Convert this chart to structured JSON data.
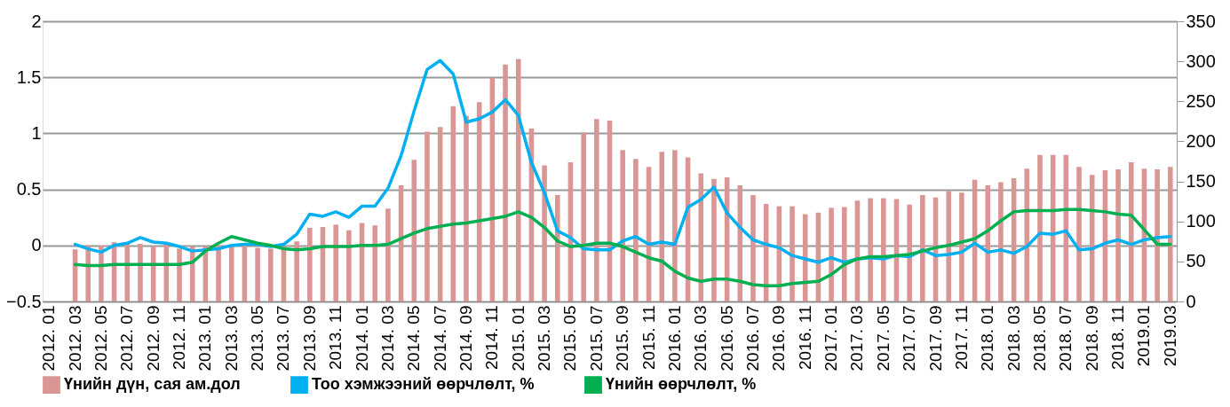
{
  "chart_data": {
    "type": "bar",
    "categories": [
      "2012. 01",
      null,
      "2012. 03",
      null,
      "2012. 05",
      null,
      "2012. 07",
      null,
      "2012. 09",
      null,
      "2012. 11",
      null,
      "2013. 01",
      null,
      "2013. 03",
      null,
      "2013. 05",
      null,
      "2013. 07",
      null,
      "2013. 09",
      null,
      "2013. 11",
      null,
      "2014. 01",
      null,
      "2014. 03",
      null,
      "2014. 05",
      null,
      "2014. 07",
      null,
      "2014. 09",
      null,
      "2014. 11",
      null,
      "2015. 01",
      null,
      "2015. 03",
      null,
      "2015. 05",
      null,
      "2015. 07",
      null,
      "2015. 09",
      null,
      "2015. 11",
      null,
      "2016. 01",
      null,
      "2016. 03",
      null,
      "2016. 05",
      null,
      "2016. 07",
      null,
      "2016. 09",
      null,
      "2016. 11",
      null,
      "2017. 01",
      null,
      "2017. 03",
      null,
      "2017. 05",
      null,
      "2017. 07",
      null,
      "2017. 09",
      null,
      "2017. 11",
      null,
      "2018. 01",
      null,
      "2018. 03",
      null,
      "2018. 05",
      null,
      "2018. 07",
      null,
      "2018. 09",
      null,
      "2018. 11",
      null,
      "2019.01",
      null,
      "2019.03"
    ],
    "series": [
      {
        "name": "Үнийн дүн, сая ам.дол",
        "axis": "y2",
        "color": "#d99694",
        "values": [
          null,
          null,
          65,
          70,
          70,
          74,
          74,
          72,
          69,
          72,
          66,
          69,
          69,
          70,
          69,
          72,
          67,
          66,
          69,
          75,
          92,
          93,
          96,
          89,
          98,
          95,
          116,
          145,
          177,
          212,
          218,
          244,
          232,
          249,
          279,
          296,
          303,
          216,
          170,
          133,
          174,
          211,
          228,
          226,
          189,
          178,
          168,
          187,
          189,
          180,
          160,
          153,
          155,
          145,
          133,
          122,
          119,
          119,
          109,
          111,
          117,
          118,
          126,
          129,
          129,
          128,
          121,
          133,
          130,
          138,
          136,
          152,
          145,
          149,
          154,
          166,
          183,
          183,
          183,
          168,
          158,
          164,
          165,
          174,
          166,
          165,
          168
        ]
      },
      {
        "name": "Тоо хэмжээний өөрчлөлт, %",
        "type": "line",
        "color": "#00b0f0",
        "values": [
          null,
          null,
          0.01,
          -0.03,
          -0.06,
          0.0,
          0.02,
          0.07,
          0.03,
          0.02,
          -0.01,
          -0.05,
          -0.04,
          -0.03,
          0.0,
          0.01,
          0.01,
          -0.01,
          0.01,
          0.1,
          0.28,
          0.26,
          0.3,
          0.25,
          0.35,
          0.35,
          0.51,
          0.8,
          1.2,
          1.57,
          1.65,
          1.53,
          1.1,
          1.13,
          1.19,
          1.3,
          1.16,
          0.74,
          0.47,
          0.13,
          0.07,
          -0.03,
          -0.04,
          -0.04,
          0.04,
          0.08,
          0.01,
          0.03,
          0.01,
          0.34,
          0.41,
          0.52,
          0.29,
          0.16,
          0.05,
          0.01,
          -0.02,
          -0.09,
          -0.12,
          -0.15,
          -0.11,
          -0.15,
          -0.12,
          -0.11,
          -0.12,
          -0.09,
          -0.1,
          -0.04,
          -0.09,
          -0.08,
          -0.06,
          0.02,
          -0.06,
          -0.04,
          -0.07,
          -0.01,
          0.11,
          0.1,
          0.13,
          -0.04,
          -0.03,
          0.02,
          0.05,
          0.01,
          0.05,
          0.07,
          0.08
        ]
      },
      {
        "name": "Үнийн өөрчлөлт, %",
        "type": "line",
        "color": "#00b050",
        "values": [
          null,
          null,
          -0.17,
          -0.18,
          -0.18,
          -0.17,
          -0.17,
          -0.17,
          -0.17,
          -0.17,
          -0.17,
          -0.15,
          -0.05,
          0.02,
          0.08,
          0.05,
          0.02,
          0.0,
          -0.03,
          -0.04,
          -0.03,
          -0.01,
          -0.01,
          -0.01,
          0.0,
          0.0,
          0.01,
          0.06,
          0.11,
          0.15,
          0.17,
          0.19,
          0.2,
          0.22,
          0.24,
          0.26,
          0.3,
          0.25,
          0.16,
          0.04,
          -0.01,
          0.0,
          0.02,
          0.02,
          -0.01,
          -0.06,
          -0.11,
          -0.14,
          -0.23,
          -0.29,
          -0.32,
          -0.3,
          -0.3,
          -0.32,
          -0.35,
          -0.36,
          -0.36,
          -0.34,
          -0.33,
          -0.32,
          -0.26,
          -0.17,
          -0.12,
          -0.1,
          -0.1,
          -0.09,
          -0.08,
          -0.05,
          -0.02,
          0.0,
          0.03,
          0.06,
          0.13,
          0.22,
          0.3,
          0.31,
          0.31,
          0.31,
          0.32,
          0.32,
          0.31,
          0.3,
          0.28,
          0.27,
          0.14,
          0.01,
          0.01
        ]
      }
    ],
    "ylim": [
      -0.5,
      2
    ],
    "yticks": [
      -0.5,
      0,
      0.5,
      1,
      1.5,
      2
    ],
    "y2lim": [
      0,
      350
    ],
    "y2ticks": [
      0,
      50,
      100,
      150,
      200,
      250,
      300,
      350
    ],
    "grid": "y",
    "legend": "bottom"
  }
}
